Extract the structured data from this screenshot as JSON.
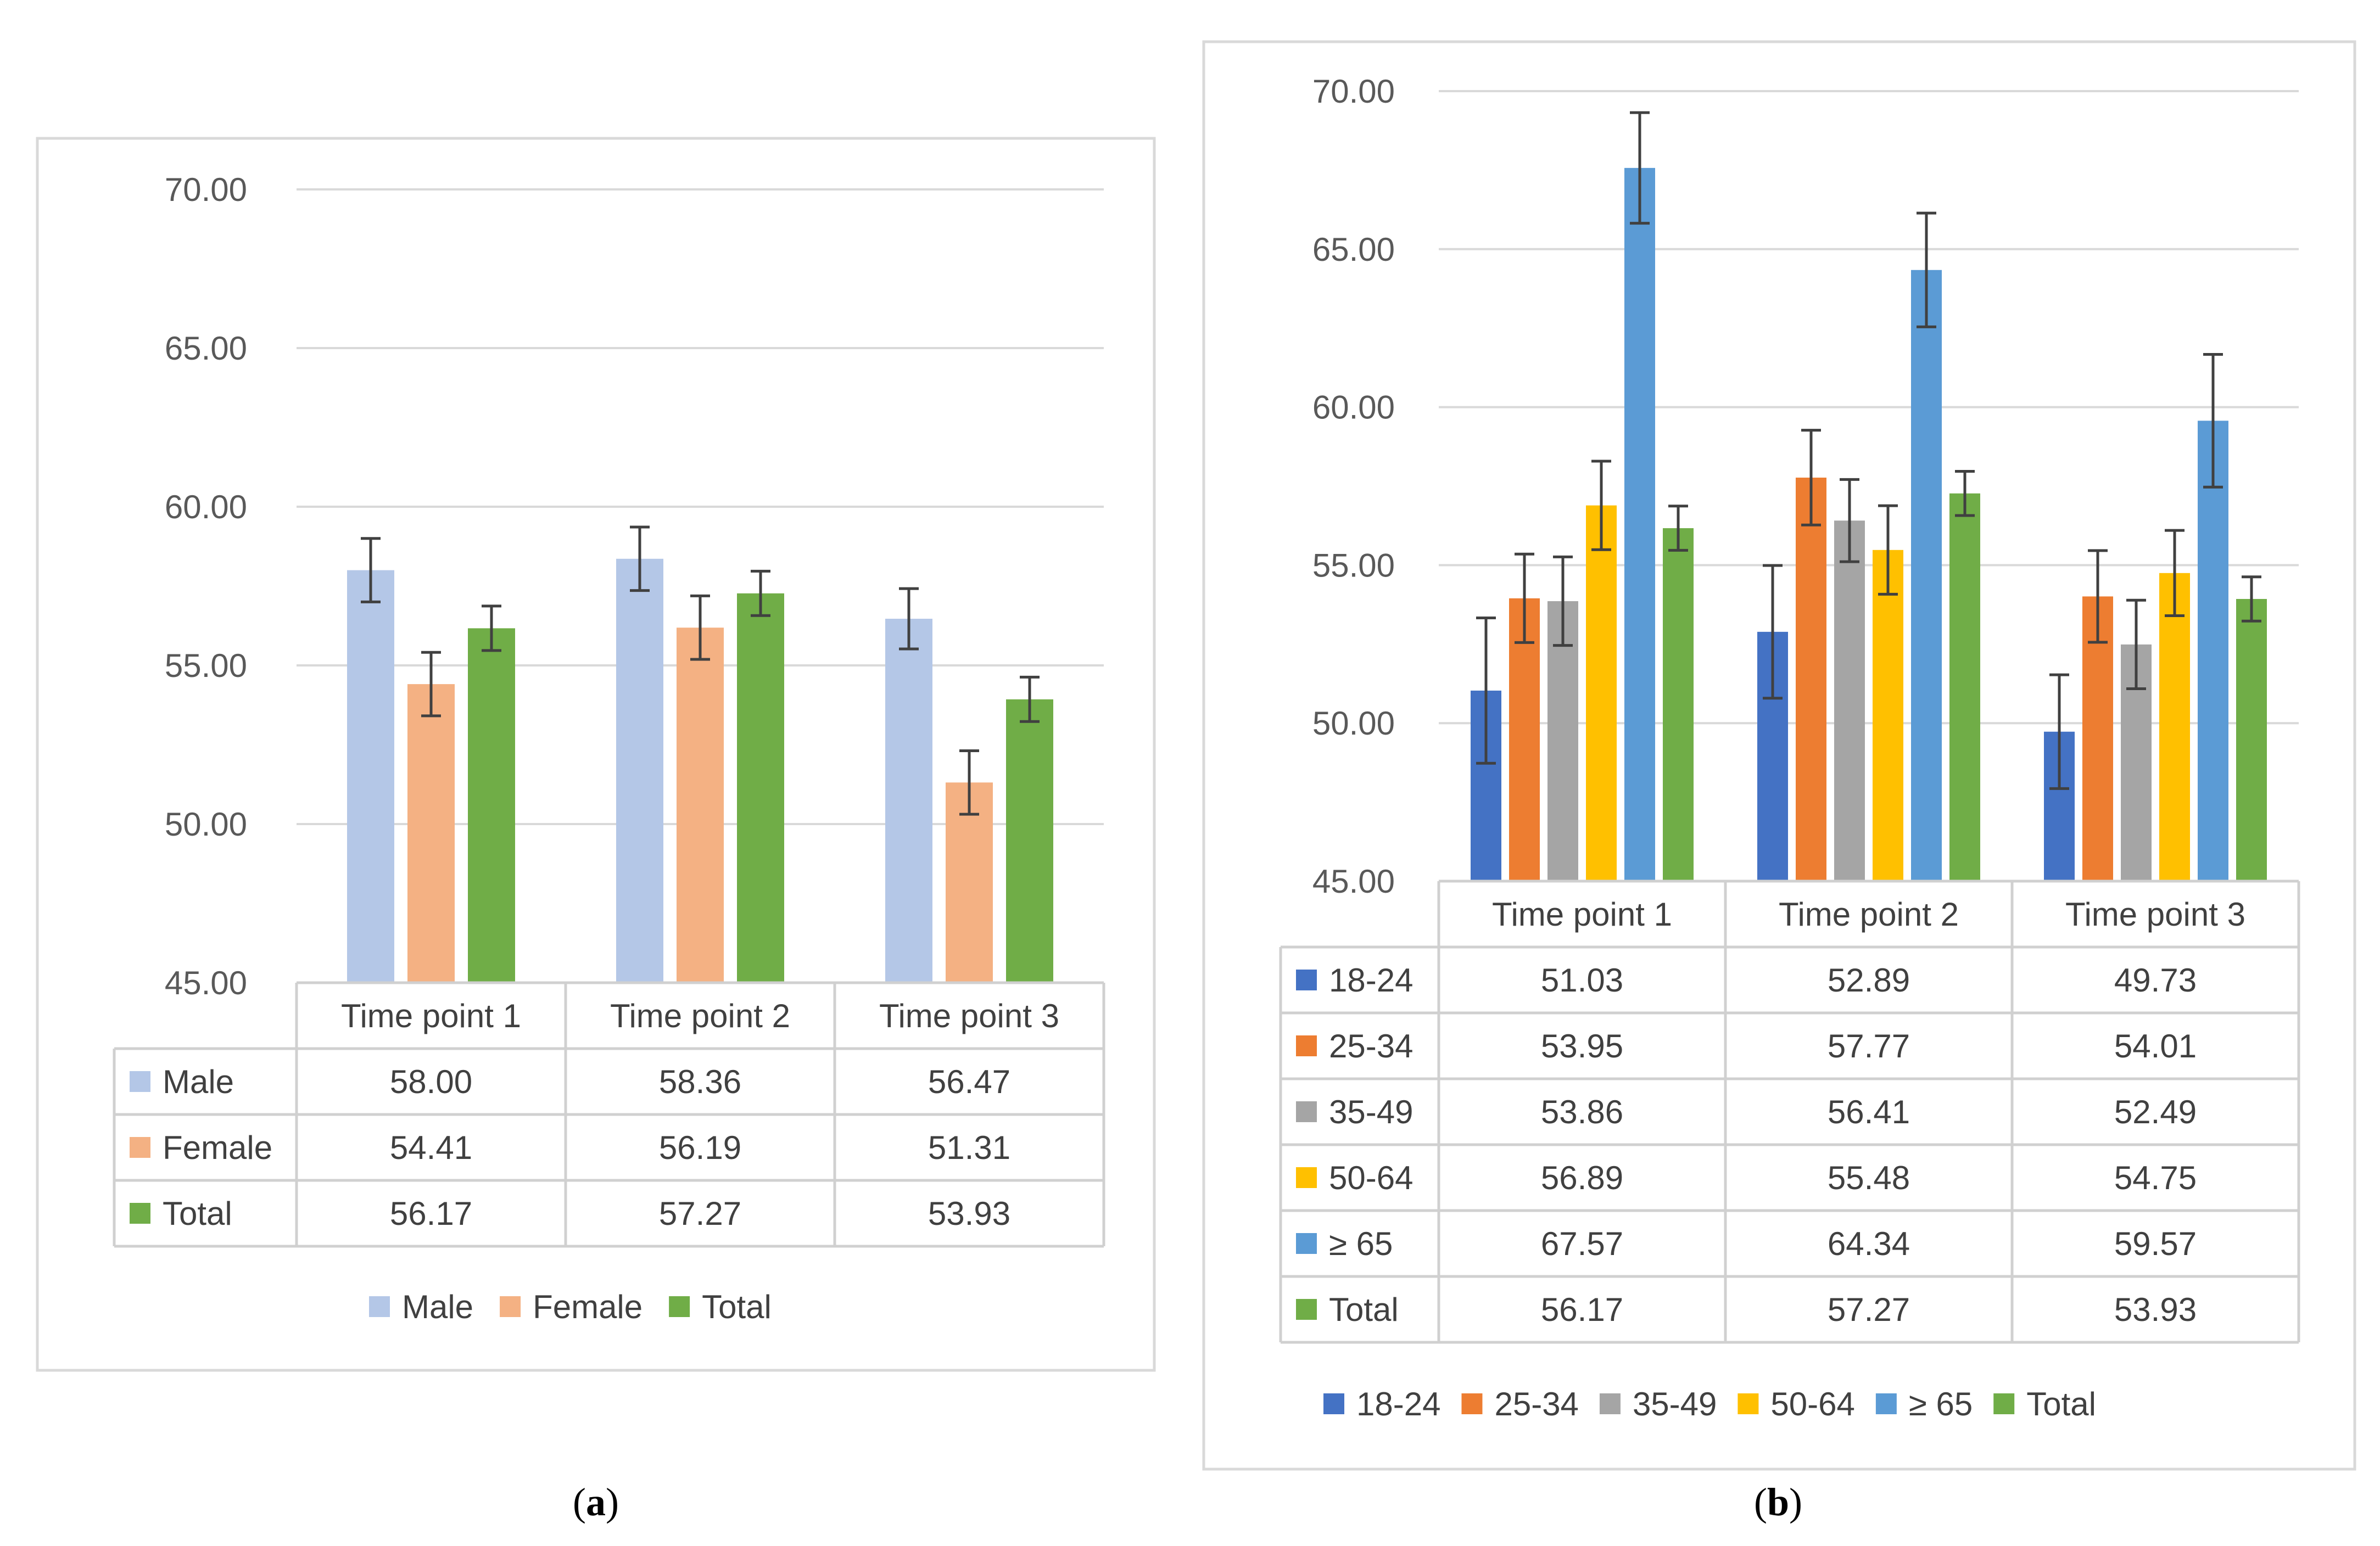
{
  "chart_data": [
    {
      "panel": "a",
      "type": "bar",
      "categories": [
        "Time point 1",
        "Time point 2",
        "Time point 3"
      ],
      "yticks": [
        "45.00",
        "50.00",
        "55.00",
        "60.00",
        "65.00",
        "70.00"
      ],
      "ylim": [
        45,
        70
      ],
      "legend_position": "bottom",
      "series": [
        {
          "name": "Male",
          "color": "#B4C7E7",
          "values": [
            58.0,
            58.36,
            56.47
          ],
          "labels": [
            "58.00",
            "58.36",
            "56.47"
          ],
          "error": [
            1.0,
            1.0,
            0.95
          ]
        },
        {
          "name": "Female",
          "color": "#F4B183",
          "values": [
            54.41,
            56.19,
            51.31
          ],
          "labels": [
            "54.41",
            "56.19",
            "51.31"
          ],
          "error": [
            1.0,
            1.0,
            1.0
          ]
        },
        {
          "name": "Total",
          "color": "#70AD47",
          "values": [
            56.17,
            57.27,
            53.93
          ],
          "labels": [
            "56.17",
            "57.27",
            "53.93"
          ],
          "error": [
            0.7,
            0.7,
            0.7
          ]
        }
      ],
      "caption": {
        "open": "(",
        "letter": "a",
        "close": ")"
      }
    },
    {
      "panel": "b",
      "type": "bar",
      "categories": [
        "Time point 1",
        "Time point 2",
        "Time point 3"
      ],
      "yticks": [
        "45.00",
        "50.00",
        "55.00",
        "60.00",
        "65.00",
        "70.00"
      ],
      "ylim": [
        45,
        70
      ],
      "legend_position": "bottom",
      "series": [
        {
          "name": "18-24",
          "color": "#4472C4",
          "values": [
            51.03,
            52.89,
            49.73
          ],
          "labels": [
            "51.03",
            "52.89",
            "49.73"
          ],
          "error": [
            2.3,
            2.1,
            1.8
          ]
        },
        {
          "name": "25-34",
          "color": "#ED7D31",
          "values": [
            53.95,
            57.77,
            54.01
          ],
          "labels": [
            "53.95",
            "57.77",
            "54.01"
          ],
          "error": [
            1.4,
            1.5,
            1.45
          ]
        },
        {
          "name": "35-49",
          "color": "#A5A5A5",
          "values": [
            53.86,
            56.41,
            52.49
          ],
          "labels": [
            "53.86",
            "56.41",
            "52.49"
          ],
          "error": [
            1.4,
            1.3,
            1.4
          ]
        },
        {
          "name": "50-64",
          "color": "#FFC000",
          "values": [
            56.89,
            55.48,
            54.75
          ],
          "labels": [
            "56.89",
            "55.48",
            "54.75"
          ],
          "error": [
            1.4,
            1.4,
            1.35
          ]
        },
        {
          "name": "≥ 65",
          "color": "#5B9BD5",
          "values": [
            67.57,
            64.34,
            59.57
          ],
          "labels": [
            "67.57",
            "64.34",
            "59.57"
          ],
          "error": [
            1.75,
            1.8,
            2.1
          ]
        },
        {
          "name": "Total",
          "color": "#70AD47",
          "values": [
            56.17,
            57.27,
            53.93
          ],
          "labels": [
            "56.17",
            "57.27",
            "53.93"
          ],
          "error": [
            0.7,
            0.7,
            0.7
          ]
        }
      ],
      "caption": {
        "open": "(",
        "letter": "b",
        "close": ")"
      }
    }
  ]
}
